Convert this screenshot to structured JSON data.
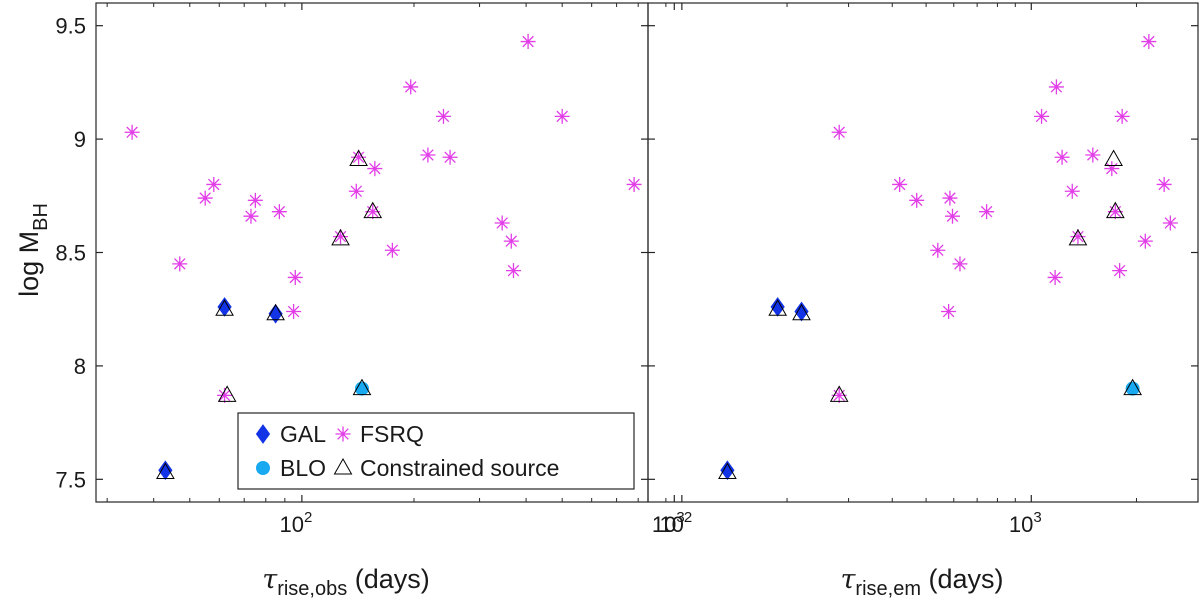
{
  "colors": {
    "GAL": "#1233e6",
    "BLO": "#19a9f0",
    "FSRQ": "#e23ee8",
    "constrained": "#000000"
  },
  "chart_data": [
    {
      "type": "scatter",
      "panel": "left",
      "title": "",
      "xscale": "log",
      "xlim": [
        28,
        850
      ],
      "ylim": [
        7.4,
        9.6
      ],
      "xlabel_sym": "τ",
      "xlabel_sub": "rise,obs",
      "xlabel_tail": " (days)",
      "ylabel_main": "log M",
      "ylabel_sub": "BH",
      "xticks": [
        100,
        1000
      ],
      "xtick_labels": [
        "10",
        "10"
      ],
      "xtick_exps": [
        "2",
        "3"
      ],
      "yticks": [
        7.5,
        8,
        8.5,
        9,
        9.5
      ],
      "ytick_labels": [
        "7.5",
        "8",
        "8.5",
        "9",
        "9.5"
      ],
      "series": [
        {
          "name": "GAL",
          "marker": "diamond",
          "points": [
            [
              43,
              7.54
            ],
            [
              62,
              8.26
            ],
            [
              85,
              8.23
            ]
          ]
        },
        {
          "name": "BLO",
          "marker": "circle",
          "points": [
            [
              145,
              7.9
            ]
          ]
        },
        {
          "name": "FSRQ",
          "marker": "asterisk",
          "points": [
            [
              35,
              9.03
            ],
            [
              47,
              8.45
            ],
            [
              55,
              8.74
            ],
            [
              58,
              8.8
            ],
            [
              62,
              7.87
            ],
            [
              73,
              8.66
            ],
            [
              75,
              8.73
            ],
            [
              87,
              8.68
            ],
            [
              95,
              8.24
            ],
            [
              96,
              8.39
            ],
            [
              127,
              8.57
            ],
            [
              140,
              8.77
            ],
            [
              142,
              8.92
            ],
            [
              155,
              8.68
            ],
            [
              157,
              8.87
            ],
            [
              175,
              8.51
            ],
            [
              196,
              9.23
            ],
            [
              218,
              8.93
            ],
            [
              240,
              9.1
            ],
            [
              250,
              8.92
            ],
            [
              345,
              8.63
            ],
            [
              365,
              8.55
            ],
            [
              370,
              8.42
            ],
            [
              405,
              9.43
            ],
            [
              500,
              9.1
            ],
            [
              780,
              8.8
            ]
          ]
        },
        {
          "name": "Constrained source",
          "marker": "triangle",
          "points": [
            [
              43,
              7.53
            ],
            [
              62,
              8.25
            ],
            [
              63,
              7.87
            ],
            [
              85,
              8.23
            ],
            [
              127,
              8.56
            ],
            [
              142,
              8.91
            ],
            [
              145,
              7.9
            ],
            [
              155,
              8.68
            ]
          ]
        }
      ],
      "legend": {
        "placement": "lower-center",
        "entries": [
          {
            "series": "GAL",
            "label": "GAL"
          },
          {
            "series": "FSRQ",
            "label": "FSRQ"
          },
          {
            "series": "BLO",
            "label": "BLO"
          },
          {
            "series": "Constrained source",
            "label": "Constrained source"
          }
        ]
      }
    },
    {
      "type": "scatter",
      "panel": "right",
      "title": "",
      "xscale": "log",
      "xlim": [
        80,
        3000
      ],
      "ylim": [
        7.4,
        9.6
      ],
      "xlabel_sym": "τ",
      "xlabel_sub": "rise,em",
      "xlabel_tail": " (days)",
      "xticks": [
        100,
        1000
      ],
      "xtick_labels": [
        "10",
        "10"
      ],
      "xtick_exps": [
        "2",
        "3"
      ],
      "yticks": [
        7.5,
        8,
        8.5,
        9,
        9.5
      ],
      "series": [
        {
          "name": "GAL",
          "marker": "diamond",
          "points": [
            [
              135,
              7.54
            ],
            [
              188,
              8.26
            ],
            [
              220,
              8.24
            ]
          ]
        },
        {
          "name": "BLO",
          "marker": "circle",
          "points": [
            [
              1950,
              7.9
            ]
          ]
        },
        {
          "name": "FSRQ",
          "marker": "asterisk",
          "points": [
            [
              282,
              9.03
            ],
            [
              282,
              7.87
            ],
            [
              420,
              8.8
            ],
            [
              470,
              8.73
            ],
            [
              540,
              8.51
            ],
            [
              580,
              8.24
            ],
            [
              585,
              8.74
            ],
            [
              595,
              8.66
            ],
            [
              625,
              8.45
            ],
            [
              745,
              8.68
            ],
            [
              1070,
              9.1
            ],
            [
              1170,
              8.39
            ],
            [
              1180,
              9.23
            ],
            [
              1225,
              8.92
            ],
            [
              1310,
              8.77
            ],
            [
              1360,
              8.57
            ],
            [
              1500,
              8.93
            ],
            [
              1700,
              8.87
            ],
            [
              1740,
              8.68
            ],
            [
              1790,
              8.42
            ],
            [
              1820,
              9.1
            ],
            [
              2120,
              8.55
            ],
            [
              2170,
              9.43
            ],
            [
              2400,
              8.8
            ],
            [
              2500,
              8.63
            ]
          ]
        },
        {
          "name": "Constrained source",
          "marker": "triangle",
          "points": [
            [
              135,
              7.53
            ],
            [
              188,
              8.25
            ],
            [
              220,
              8.23
            ],
            [
              282,
              7.87
            ],
            [
              1360,
              8.56
            ],
            [
              1720,
              8.91
            ],
            [
              1740,
              8.68
            ],
            [
              1950,
              7.9
            ]
          ]
        }
      ]
    }
  ]
}
